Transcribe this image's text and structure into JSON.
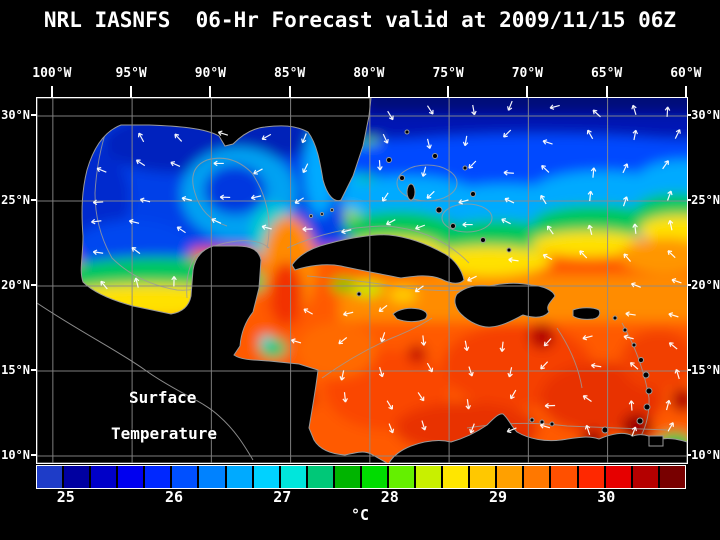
{
  "title": "NRL IASNFS  06-Hr Forecast valid at 2009/11/15 06Z",
  "map": {
    "lon_labels": [
      "100°W",
      "95°W",
      "90°W",
      "85°W",
      "80°W",
      "75°W",
      "70°W",
      "65°W",
      "60°W"
    ],
    "lat_labels": [
      "30°N",
      "25°N",
      "20°N",
      "15°N",
      "10°N"
    ],
    "overlay_labels": {
      "line1": "Surface",
      "line2": "Temperature"
    }
  },
  "colorbar": {
    "unit": "°C",
    "tick_labels": [
      "25",
      "26",
      "27",
      "28",
      "29",
      "30"
    ],
    "tick_positions_pct": [
      4.6,
      21.3,
      38.0,
      54.6,
      71.3,
      88.0
    ],
    "segment_colors": [
      "#1E3CC8",
      "#0000A0",
      "#0000C8",
      "#0000F0",
      "#0028FF",
      "#0050FF",
      "#0082FF",
      "#00AAFF",
      "#00D2FF",
      "#00E6DC",
      "#00C878",
      "#00B400",
      "#00DC00",
      "#64F000",
      "#C8F000",
      "#FFE600",
      "#FFC800",
      "#FFA000",
      "#FF7800",
      "#FF5000",
      "#FF2800",
      "#E60000",
      "#B40000",
      "#780000"
    ]
  },
  "colors": {
    "background": "#000000",
    "frame": "#FFFFFF",
    "grid": "#8C8C8C",
    "coastline": "#9A9A9A",
    "vectors": "#FFFFFF",
    "cold_water": "#0028FF",
    "warm_water": "#FF5000"
  }
}
